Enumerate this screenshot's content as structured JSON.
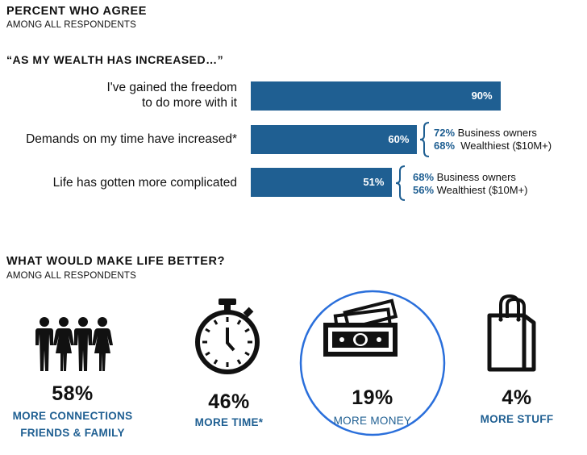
{
  "section1": {
    "title": "PERCENT WHO AGREE",
    "subtitle": "AMONG ALL RESPONDENTS",
    "quote": "“AS MY WEALTH HAS INCREASED…”"
  },
  "chart_data": {
    "type": "bar",
    "orientation": "horizontal",
    "title": "“AS MY WEALTH HAS INCREASED…”",
    "xlim": [
      0,
      100
    ],
    "categories": [
      "I've gained the freedom to do more with it",
      "Demands on my time have increased*",
      "Life has gotten more complicated"
    ],
    "category_lines": [
      [
        "I've gained the freedom",
        "to do more with it"
      ],
      [
        "Demands on my time have increased*"
      ],
      [
        "Life has gotten more complicated"
      ]
    ],
    "values": [
      90,
      60,
      51
    ],
    "value_labels": [
      "90%",
      "60%",
      "51%"
    ],
    "color": "#1f5f92",
    "annotations": [
      null,
      [
        {
          "pct": "72%",
          "text": " Business owners"
        },
        {
          "pct": "68%",
          "text": "  Wealthiest ($10M+)"
        }
      ],
      [
        {
          "pct": "68%",
          "text": " Business owners"
        },
        {
          "pct": "56%",
          "text": " Wealthiest ($10M+)"
        }
      ]
    ]
  },
  "section2": {
    "title": "WHAT WOULD MAKE LIFE BETTER?",
    "subtitle": "AMONG ALL RESPONDENTS",
    "items": [
      {
        "icon": "people-icon",
        "pct": "58%",
        "label1": "MORE CONNECTIONS",
        "label2": "FRIENDS & FAMILY",
        "value": 58
      },
      {
        "icon": "stopwatch-icon",
        "pct": "46%",
        "label1": "MORE TIME*",
        "label2": "",
        "value": 46
      },
      {
        "icon": "money-icon",
        "pct": "19%",
        "label1": "MORE MONEY",
        "label2": "",
        "value": 19,
        "highlighted": true
      },
      {
        "icon": "shopping-bag-icon",
        "pct": "4%",
        "label1": "MORE STUFF",
        "label2": "",
        "value": 4
      }
    ],
    "accent": "#1f5f92",
    "highlight_color": "#2a6fdb"
  }
}
